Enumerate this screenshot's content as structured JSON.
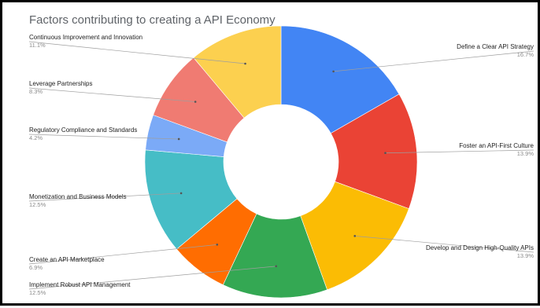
{
  "chart_data": {
    "type": "pie",
    "title": "Factors contributing to creating a API Economy",
    "donut": true,
    "slices": [
      {
        "label": "Define a Clear API Strategy",
        "pct_label": "16.7%",
        "value": 16.7,
        "color": "#4285F4"
      },
      {
        "label": "Foster an API-First Culture",
        "pct_label": "13.9%",
        "value": 13.9,
        "color": "#EA4335"
      },
      {
        "label": "Develop and Design High-Quality APIs",
        "pct_label": "13.9%",
        "value": 13.9,
        "color": "#FBBC04"
      },
      {
        "label": "Implement Robust API Management",
        "pct_label": "12.5%",
        "value": 12.5,
        "color": "#34A853"
      },
      {
        "label": "Create an API Marketplace",
        "pct_label": "6.9%",
        "value": 6.9,
        "color": "#FF6D01"
      },
      {
        "label": "Monetization and Business Models",
        "pct_label": "12.5%",
        "value": 12.5,
        "color": "#46BDC6"
      },
      {
        "label": "Regulatory Compliance and Standards",
        "pct_label": "4.2%",
        "value": 4.2,
        "color": "#7BAAF7"
      },
      {
        "label": "Leverage Partnerships",
        "pct_label": "8.3%",
        "value": 8.3,
        "color": "#F07B72"
      },
      {
        "label": "Continuous Improvement and Innovation",
        "pct_label": "11.1%",
        "value": 11.1,
        "color": "#FCD04F"
      }
    ]
  }
}
